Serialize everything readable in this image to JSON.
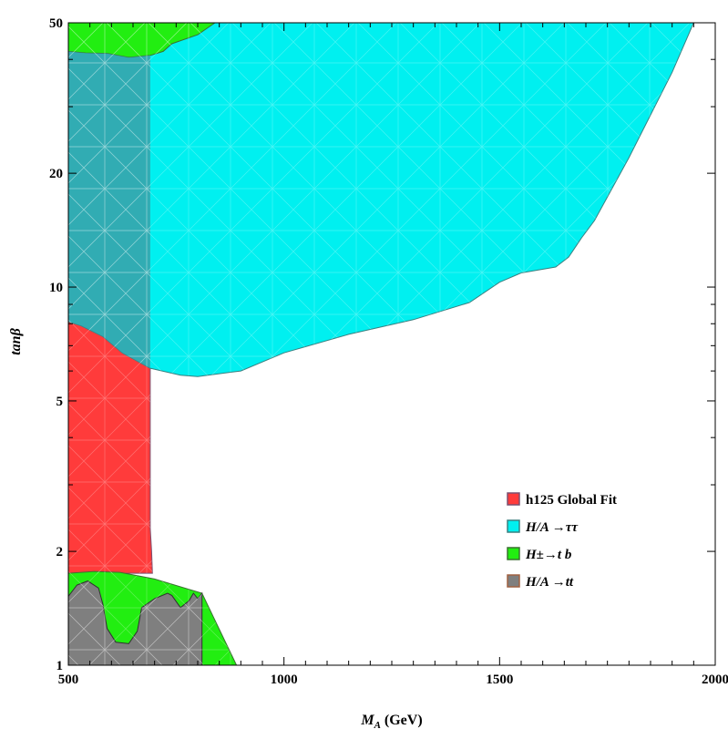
{
  "chart_data": {
    "type": "area",
    "title": "",
    "xlabel": "M_A (GeV)",
    "xlabel_parts": {
      "main": "M",
      "sub": "A",
      "unit": " (GeV)"
    },
    "ylabel": "tanβ",
    "x_scale": "linear",
    "y_scale": "log",
    "xlim": [
      500,
      2000
    ],
    "ylim": [
      1,
      50
    ],
    "x_ticks": [
      500,
      1000,
      1500,
      2000
    ],
    "y_ticks": [
      1,
      2,
      5,
      10,
      20,
      50
    ],
    "grid": false,
    "legend_position": "bottom-right",
    "series": [
      {
        "name": "h125 Global Fit",
        "color": "#ff3b3b",
        "edge": "#7a5070",
        "polygon": [
          [
            500,
            1.0
          ],
          [
            500,
            8.1
          ],
          [
            530,
            7.9
          ],
          [
            580,
            7.4
          ],
          [
            625,
            6.7
          ],
          [
            690,
            6.1
          ],
          [
            690,
            2.3
          ],
          [
            693,
            2.0
          ],
          [
            695,
            1.75
          ],
          [
            500,
            1.75
          ]
        ]
      },
      {
        "name": "H/A →ττ",
        "legend_label": "H/A →ττ",
        "color": "#00f0f0",
        "edge": "#3a8080",
        "polygon": [
          [
            500,
            8.1
          ],
          [
            500,
            50
          ],
          [
            1950,
            50
          ],
          [
            1900,
            37
          ],
          [
            1800,
            22
          ],
          [
            1720,
            15
          ],
          [
            1690,
            13.5
          ],
          [
            1660,
            12
          ],
          [
            1630,
            11.3
          ],
          [
            1550,
            10.9
          ],
          [
            1500,
            10.3
          ],
          [
            1430,
            9.1
          ],
          [
            1300,
            8.2
          ],
          [
            1150,
            7.5
          ],
          [
            1000,
            6.7
          ],
          [
            900,
            6.0
          ],
          [
            800,
            5.8
          ],
          [
            760,
            5.85
          ],
          [
            690,
            6.1
          ],
          [
            625,
            6.7
          ],
          [
            580,
            7.4
          ],
          [
            530,
            7.9
          ]
        ]
      },
      {
        "name": "H±→t b",
        "legend_label": "H±→t b",
        "color": "#22ee11",
        "edge": "#3a7030",
        "polygon": [
          [
            500,
            1.0
          ],
          [
            500,
            1.75
          ],
          [
            560,
            1.77
          ],
          [
            620,
            1.76
          ],
          [
            700,
            1.69
          ],
          [
            810,
            1.55
          ],
          [
            890,
            1.0
          ]
        ]
      },
      {
        "name": "H±→t b (upper)",
        "color": "#22ee11",
        "edge": "#3a7030",
        "polygon": [
          [
            500,
            50
          ],
          [
            840,
            50
          ],
          [
            800,
            46.5
          ],
          [
            740,
            44
          ],
          [
            720,
            42
          ],
          [
            690,
            41
          ],
          [
            640,
            40.5
          ],
          [
            590,
            41.5
          ],
          [
            540,
            41.6
          ],
          [
            500,
            42
          ]
        ]
      },
      {
        "name": "H/A →tt",
        "legend_label": "H/A →tt",
        "color": "#7f7f7f",
        "edge": "#303030",
        "polygon": [
          [
            500,
            1.0
          ],
          [
            500,
            1.52
          ],
          [
            520,
            1.63
          ],
          [
            545,
            1.67
          ],
          [
            570,
            1.6
          ],
          [
            580,
            1.45
          ],
          [
            590,
            1.25
          ],
          [
            610,
            1.15
          ],
          [
            640,
            1.14
          ],
          [
            660,
            1.23
          ],
          [
            670,
            1.42
          ],
          [
            700,
            1.5
          ],
          [
            730,
            1.55
          ],
          [
            740,
            1.53
          ],
          [
            760,
            1.42
          ],
          [
            780,
            1.48
          ],
          [
            790,
            1.55
          ],
          [
            800,
            1.5
          ],
          [
            810,
            1.55
          ],
          [
            810,
            1.0
          ]
        ]
      }
    ],
    "overlays": [
      {
        "name": "overlap-cyan-red",
        "color": "#3aa0a8",
        "opacity": 0.85,
        "polygon": [
          [
            500,
            8.1
          ],
          [
            500,
            42
          ],
          [
            540,
            41.6
          ],
          [
            590,
            41.5
          ],
          [
            640,
            40.5
          ],
          [
            690,
            41
          ],
          [
            690,
            6.1
          ],
          [
            625,
            6.7
          ],
          [
            580,
            7.4
          ],
          [
            530,
            7.9
          ]
        ]
      }
    ]
  },
  "legend": {
    "items": [
      {
        "label_main": "h125 Global Fit",
        "color": "#ff3b3b",
        "edge": "#7a5070"
      },
      {
        "label_main": "H/A →ττ",
        "color": "#00f0f0",
        "edge": "#3a8080"
      },
      {
        "label_main": "H±→t b",
        "color": "#22ee11",
        "edge": "#3a7030"
      },
      {
        "label_main": "H/A →tt",
        "color": "#7f7f7f",
        "edge": "#a06040"
      }
    ]
  }
}
